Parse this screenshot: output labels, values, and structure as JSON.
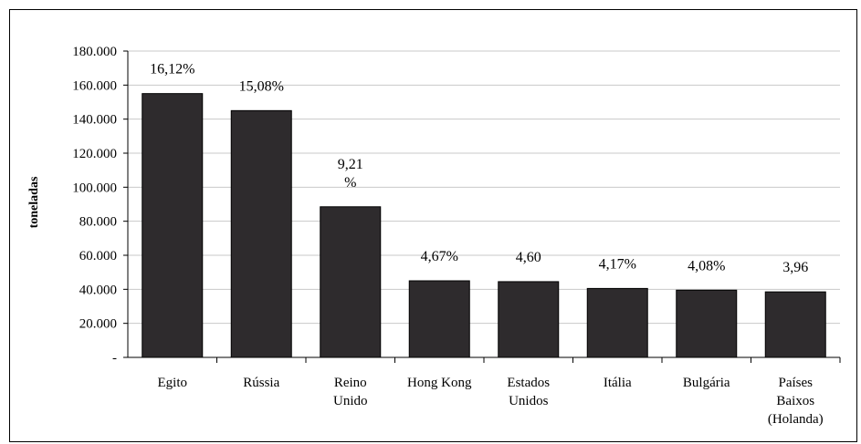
{
  "chart_data": {
    "type": "bar",
    "title": "",
    "xlabel": "",
    "ylabel": "toneladas",
    "ylim": [
      0,
      180000
    ],
    "grid": true,
    "y_ticks": [
      {
        "value": 0,
        "label": "-"
      },
      {
        "value": 20000,
        "label": "20.000"
      },
      {
        "value": 40000,
        "label": "40.000"
      },
      {
        "value": 60000,
        "label": "60.000"
      },
      {
        "value": 80000,
        "label": "80.000"
      },
      {
        "value": 100000,
        "label": "100.000"
      },
      {
        "value": 120000,
        "label": "120.000"
      },
      {
        "value": 140000,
        "label": "140.000"
      },
      {
        "value": 160000,
        "label": "160.000"
      },
      {
        "value": 180000,
        "label": "180.000"
      }
    ],
    "categories": [
      [
        "Egito"
      ],
      [
        "Rússia"
      ],
      [
        "Reino",
        "Unido"
      ],
      [
        "Hong Kong"
      ],
      [
        "Estados",
        "Unidos"
      ],
      [
        "Itália"
      ],
      [
        "Bulgária"
      ],
      [
        "Países",
        "Baixos",
        "(Holanda)"
      ]
    ],
    "values": [
      155000,
      145000,
      88500,
      45000,
      44500,
      40500,
      39500,
      38500
    ],
    "data_labels": [
      [
        "16,12%"
      ],
      [
        "15,08%"
      ],
      [
        "9,21",
        "%"
      ],
      [
        "4,67%"
      ],
      [
        "4,60"
      ],
      [
        "4,17%"
      ],
      [
        "4,08%"
      ],
      [
        "3,96"
      ]
    ],
    "colors": {
      "bar": "#2e2b2d",
      "grid": "#c8c8c8",
      "plot_bg": "#ffffff",
      "axis": "#000000"
    }
  }
}
